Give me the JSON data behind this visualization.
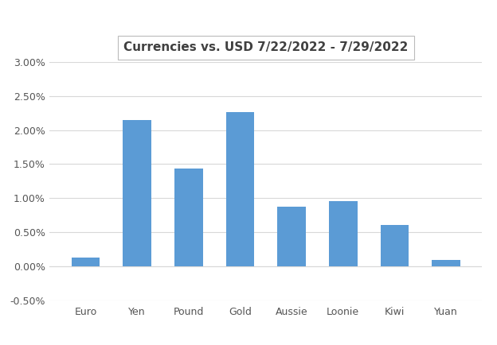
{
  "title": "Currencies vs. USD 7/22/2022 - 7/29/2022",
  "categories": [
    "Euro",
    "Yen",
    "Pound",
    "Gold",
    "Aussie",
    "Loonie",
    "Kiwi",
    "Yuan"
  ],
  "values": [
    0.0013,
    0.0215,
    0.0144,
    0.0226,
    0.0087,
    0.0096,
    0.0061,
    0.0009
  ],
  "bar_color": "#5B9BD5",
  "ylim": [
    -0.005,
    0.03
  ],
  "yticks": [
    -0.005,
    0.0,
    0.005,
    0.01,
    0.015,
    0.02,
    0.025,
    0.03
  ],
  "ytick_labels": [
    "-0.50%",
    "0.00%",
    "0.50%",
    "1.00%",
    "1.50%",
    "2.00%",
    "2.50%",
    "3.00%"
  ],
  "background_color": "#FFFFFF",
  "grid_color": "#D8D8D8",
  "title_fontsize": 11,
  "tick_fontsize": 9,
  "title_color": "#404040"
}
